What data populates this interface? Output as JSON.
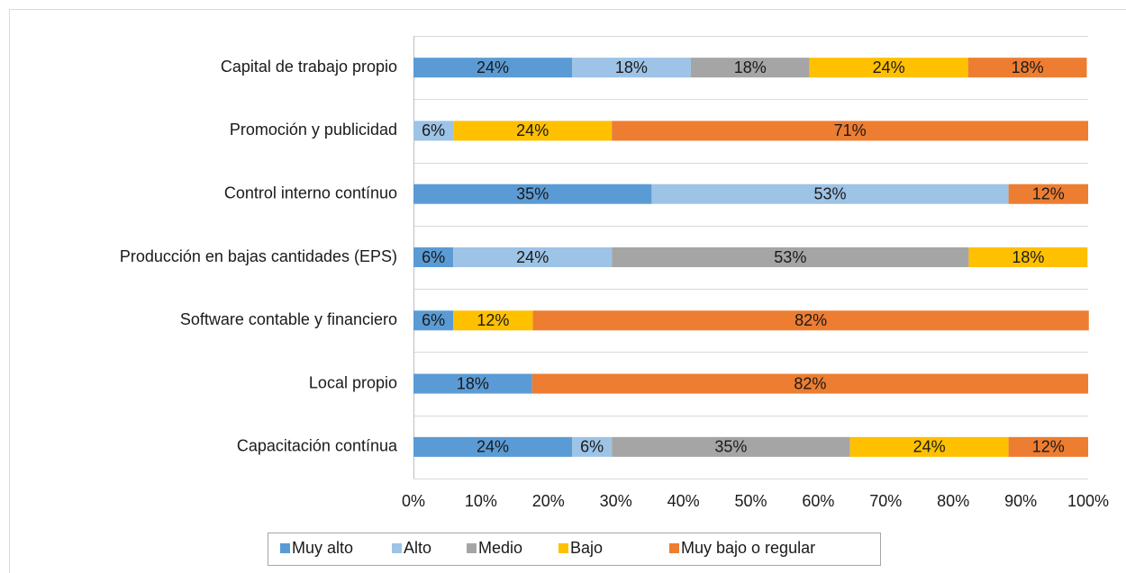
{
  "chart_data": {
    "type": "stacked_bar_horizontal",
    "categories": [
      "Capital de trabajo propio",
      "Promoción y publicidad",
      "Control interno contínuo",
      "Producción en bajas cantidades (EPS)",
      "Software contable y financiero",
      "Local propio",
      "Capacitación contínua"
    ],
    "series": [
      {
        "name": "Muy alto",
        "color": "#5b9bd5",
        "values": [
          23.5,
          0,
          35.3,
          5.9,
          5.9,
          17.6,
          23.5
        ],
        "value_labels": [
          "24%",
          null,
          "35%",
          "6%",
          "6%",
          "18%",
          "24%"
        ]
      },
      {
        "name": "Alto",
        "color": "#9dc3e6",
        "values": [
          17.6,
          5.9,
          52.9,
          23.5,
          0,
          0,
          5.9
        ],
        "value_labels": [
          "18%",
          "6%",
          "53%",
          "24%",
          null,
          null,
          "6%"
        ]
      },
      {
        "name": "Medio",
        "color": "#a5a5a5",
        "values": [
          17.6,
          0,
          0,
          52.9,
          0,
          0,
          35.3
        ],
        "value_labels": [
          "18%",
          null,
          null,
          "53%",
          null,
          null,
          "35%"
        ]
      },
      {
        "name": "Bajo",
        "color": "#ffc000",
        "values": [
          23.5,
          23.5,
          0,
          17.6,
          11.8,
          0,
          23.5
        ],
        "value_labels": [
          "24%",
          "24%",
          null,
          "18%",
          "12%",
          null,
          "24%"
        ]
      },
      {
        "name": "Muy bajo o regular",
        "color": "#ed7d31",
        "values": [
          17.6,
          70.6,
          11.8,
          0,
          82.4,
          82.4,
          11.8
        ],
        "value_labels": [
          "18%",
          "71%",
          "12%",
          null,
          "82%",
          "82%",
          "12%"
        ]
      }
    ],
    "xlim": [
      0,
      100
    ],
    "xticks": [
      {
        "value": 0,
        "label": "0%"
      },
      {
        "value": 10,
        "label": "10%"
      },
      {
        "value": 20,
        "label": "20%"
      },
      {
        "value": 30,
        "label": "30%"
      },
      {
        "value": 40,
        "label": "40%"
      },
      {
        "value": 50,
        "label": "50%"
      },
      {
        "value": 60,
        "label": "60%"
      },
      {
        "value": 70,
        "label": "70%"
      },
      {
        "value": 80,
        "label": "80%"
      },
      {
        "value": 90,
        "label": "90%"
      },
      {
        "value": 100,
        "label": "100%"
      }
    ],
    "grid": true,
    "legend": "bottom"
  }
}
